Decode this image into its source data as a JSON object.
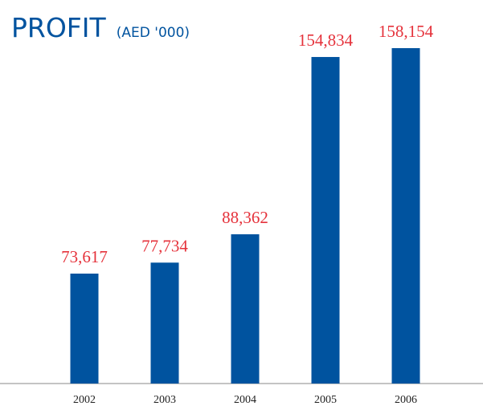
{
  "chart_data": {
    "type": "bar",
    "title": "PROFIT",
    "subtitle": "(AED '000)",
    "categories": [
      "2002",
      "2003",
      "2004",
      "2005",
      "2006"
    ],
    "values": [
      73617,
      77734,
      88362,
      154834,
      158154
    ],
    "value_labels": [
      "73,617",
      "77,734",
      "88,362",
      "154,834",
      "158,154"
    ],
    "color": "#00539f",
    "label_color": "#e5323b",
    "ylim": [
      32400,
      175000
    ]
  }
}
